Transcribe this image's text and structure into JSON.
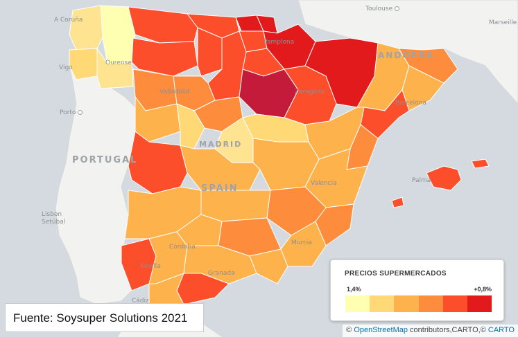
{
  "map": {
    "labels": {
      "toulouse": "Toulouse",
      "marseille": "Marseille",
      "andorra": "ANDORRA",
      "a_coruna": "A Coruña",
      "vigo": "Vigo",
      "ourense": "Ourense",
      "porto": "Porto",
      "portugal": "PORTUGAL",
      "lisbon": "Lisbon",
      "setubal": "Setúbal",
      "madrid": "MADRID",
      "valladolid": "Valladolid",
      "zaragoza": "Zaragoza",
      "barcelona": "Barcelona",
      "pamplona": "Pamplona",
      "valencia": "Valencia",
      "palma": "Palma",
      "murcia": "Murcia",
      "cordoba": "Córdoba",
      "sevilla": "Sevilla",
      "granada": "Granada",
      "cadiz": "Cádiz",
      "spain": "SPAIN"
    }
  },
  "legend": {
    "title": "PRECIOS SUPERMERCADOS",
    "min_label": "1,4%",
    "max_label": "+0,8%",
    "colors": [
      "#ffffb2",
      "#fed976",
      "#feb24c",
      "#fd8d3c",
      "#fc4e2a",
      "#e31a1c"
    ]
  },
  "source": "Fuente: Soysuper Solutions 2021",
  "attribution": {
    "prefix": "©",
    "osm": "OpenStreetMap",
    "middle": "contributors,CARTO,©",
    "carto": "CARTO"
  }
}
